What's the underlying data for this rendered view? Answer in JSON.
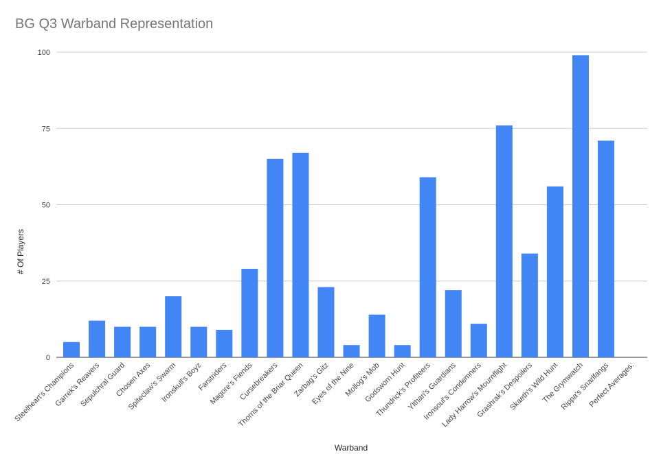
{
  "chart_data": {
    "type": "bar",
    "title": "BG Q3 Warband Representation",
    "xlabel": "Warband",
    "ylabel": "# Of Players",
    "ylim": [
      0,
      100
    ],
    "yticks": [
      0,
      25,
      50,
      75,
      100
    ],
    "grid": true,
    "legend": "none",
    "bar_color": "#4285f4",
    "categories": [
      "Steelheart's Champions",
      "Garrek's Reavers",
      "Sepulchral Guard",
      "Chosen Axes",
      "Spiteclaw's Swarm",
      "Ironskull's Boyz",
      "Farstriders",
      "Magore's Fiends",
      "Cursebreakers",
      "Thorns of the Briar Queen",
      "Zarbag's Gitz",
      "Eyes of the Nine",
      "Mollog's Mob",
      "Godsworn Hunt",
      "Thundrick's Profiteers",
      "Ylthari's Guardians",
      "Ironsoul's Condemners",
      "Lady Harrow's Mournflight",
      "Grashrak's Despoilers",
      "Skaeth's Wild Hunt",
      "The Grymwatch",
      "Rippa's Snarlfangs",
      "Perfect Averages:"
    ],
    "values": [
      5,
      12,
      10,
      10,
      20,
      10,
      9,
      29,
      65,
      67,
      23,
      4,
      14,
      4,
      59,
      22,
      11,
      76,
      34,
      56,
      99,
      71,
      0
    ]
  }
}
